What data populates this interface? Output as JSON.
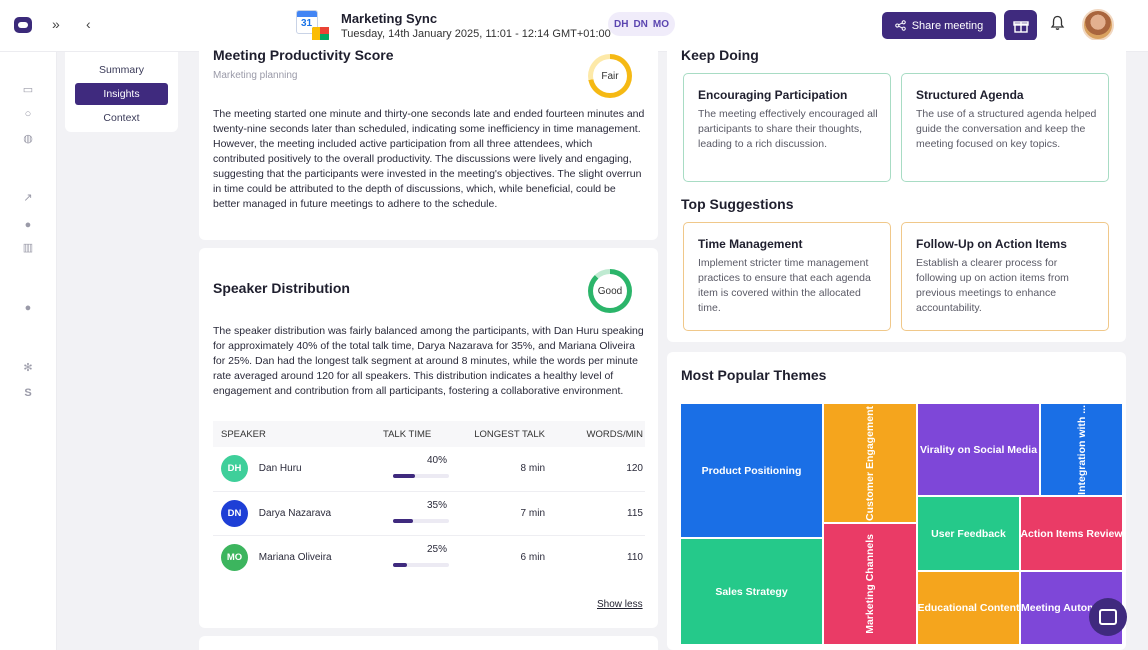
{
  "header": {
    "meeting_title": "Marketing Sync",
    "meeting_date": "Tuesday, 14th January 2025, 11:01 - 12:14 GMT+01:00",
    "calendar_day": "31",
    "participants_initials": [
      "DH",
      "DN",
      "MO"
    ],
    "share_label": "Share meeting",
    "expand_icon": "»",
    "back_icon": "‹"
  },
  "subnav": {
    "items": [
      {
        "label": "Summary",
        "active": false
      },
      {
        "label": "Insights",
        "active": true
      },
      {
        "label": "Context",
        "active": false
      }
    ]
  },
  "productivity": {
    "title": "Meeting Productivity Score",
    "subtitle": "Marketing planning",
    "rating": "Fair",
    "text": "The meeting started one minute and thirty-one seconds late and ended fourteen minutes and twenty-nine seconds later than scheduled, indicating some inefficiency in time management. However, the meeting included active participation from all three attendees, which contributed positively to the overall productivity. The discussions were lively and engaging, suggesting that the participants were invested in the meeting's objectives. The slight overrun in time could be attributed to the depth of discussions, which, while beneficial, could be better managed in future meetings to adhere to the schedule."
  },
  "speaker": {
    "title": "Speaker Distribution",
    "rating": "Good",
    "text": "The speaker distribution was fairly balanced among the participants, with Dan Huru speaking for approximately 40% of the total talk time, Darya Nazarava for 35%, and Mariana Oliveira for 25%. Dan had the longest talk segment at around 8 minutes, while the words per minute rate averaged around 120 for all speakers. This distribution indicates a healthy level of engagement and contribution from all participants, fostering a collaborative environment.",
    "columns": {
      "speaker": "SPEAKER",
      "talk": "TALK TIME",
      "longest": "LONGEST TALK",
      "wpm": "WORDS/MIN"
    },
    "rows": [
      {
        "initials": "DH",
        "name": "Dan Huru",
        "talk_pct": "40%",
        "talk_value": 0.4,
        "longest": "8 min",
        "wpm": "120",
        "color": "#3ecf9a"
      },
      {
        "initials": "DN",
        "name": "Darya Nazarava",
        "talk_pct": "35%",
        "talk_value": 0.35,
        "longest": "7 min",
        "wpm": "115",
        "color": "#1e3fd6"
      },
      {
        "initials": "MO",
        "name": "Mariana Oliveira",
        "talk_pct": "25%",
        "talk_value": 0.25,
        "longest": "6 min",
        "wpm": "110",
        "color": "#3cb55e"
      }
    ],
    "show_less": "Show less"
  },
  "keep_doing": {
    "title": "Keep Doing",
    "items": [
      {
        "title": "Encouraging Participation",
        "text": "The meeting effectively encouraged all participants to share their thoughts, leading to a rich discussion."
      },
      {
        "title": "Structured Agenda",
        "text": "The use of a structured agenda helped guide the conversation and keep the meeting focused on key topics."
      }
    ]
  },
  "suggestions": {
    "title": "Top Suggestions",
    "items": [
      {
        "title": "Time Management",
        "text": "Implement stricter time management practices to ensure that each agenda item is covered within the allocated time."
      },
      {
        "title": "Follow-Up on Action Items",
        "text": "Establish a clearer process for following up on action items from previous meetings to enhance accountability."
      }
    ]
  },
  "themes": {
    "title": "Most Popular Themes",
    "tiles": [
      {
        "label": "Product Positioning",
        "color": "#1a6fe6"
      },
      {
        "label": "Sales Strategy",
        "color": "#25c98a"
      },
      {
        "label": "Customer Engagement",
        "color": "#f5a51d"
      },
      {
        "label": "Marketing Channels",
        "color": "#ea3b66"
      },
      {
        "label": "Virality on Social Media",
        "color": "#7e47d8"
      },
      {
        "label": "Integration with ...",
        "color": "#1a6fe6"
      },
      {
        "label": "User Feedback",
        "color": "#25c98a"
      },
      {
        "label": "Action Items Review",
        "color": "#ea3b66"
      },
      {
        "label": "Educational Content",
        "color": "#f5a51d"
      },
      {
        "label": "Meeting Autom",
        "color": "#7e47d8"
      }
    ]
  },
  "colors": {
    "brand": "#3f2a7e",
    "fair_ring": "#f5b914",
    "good_ring": "#2bb56a"
  }
}
